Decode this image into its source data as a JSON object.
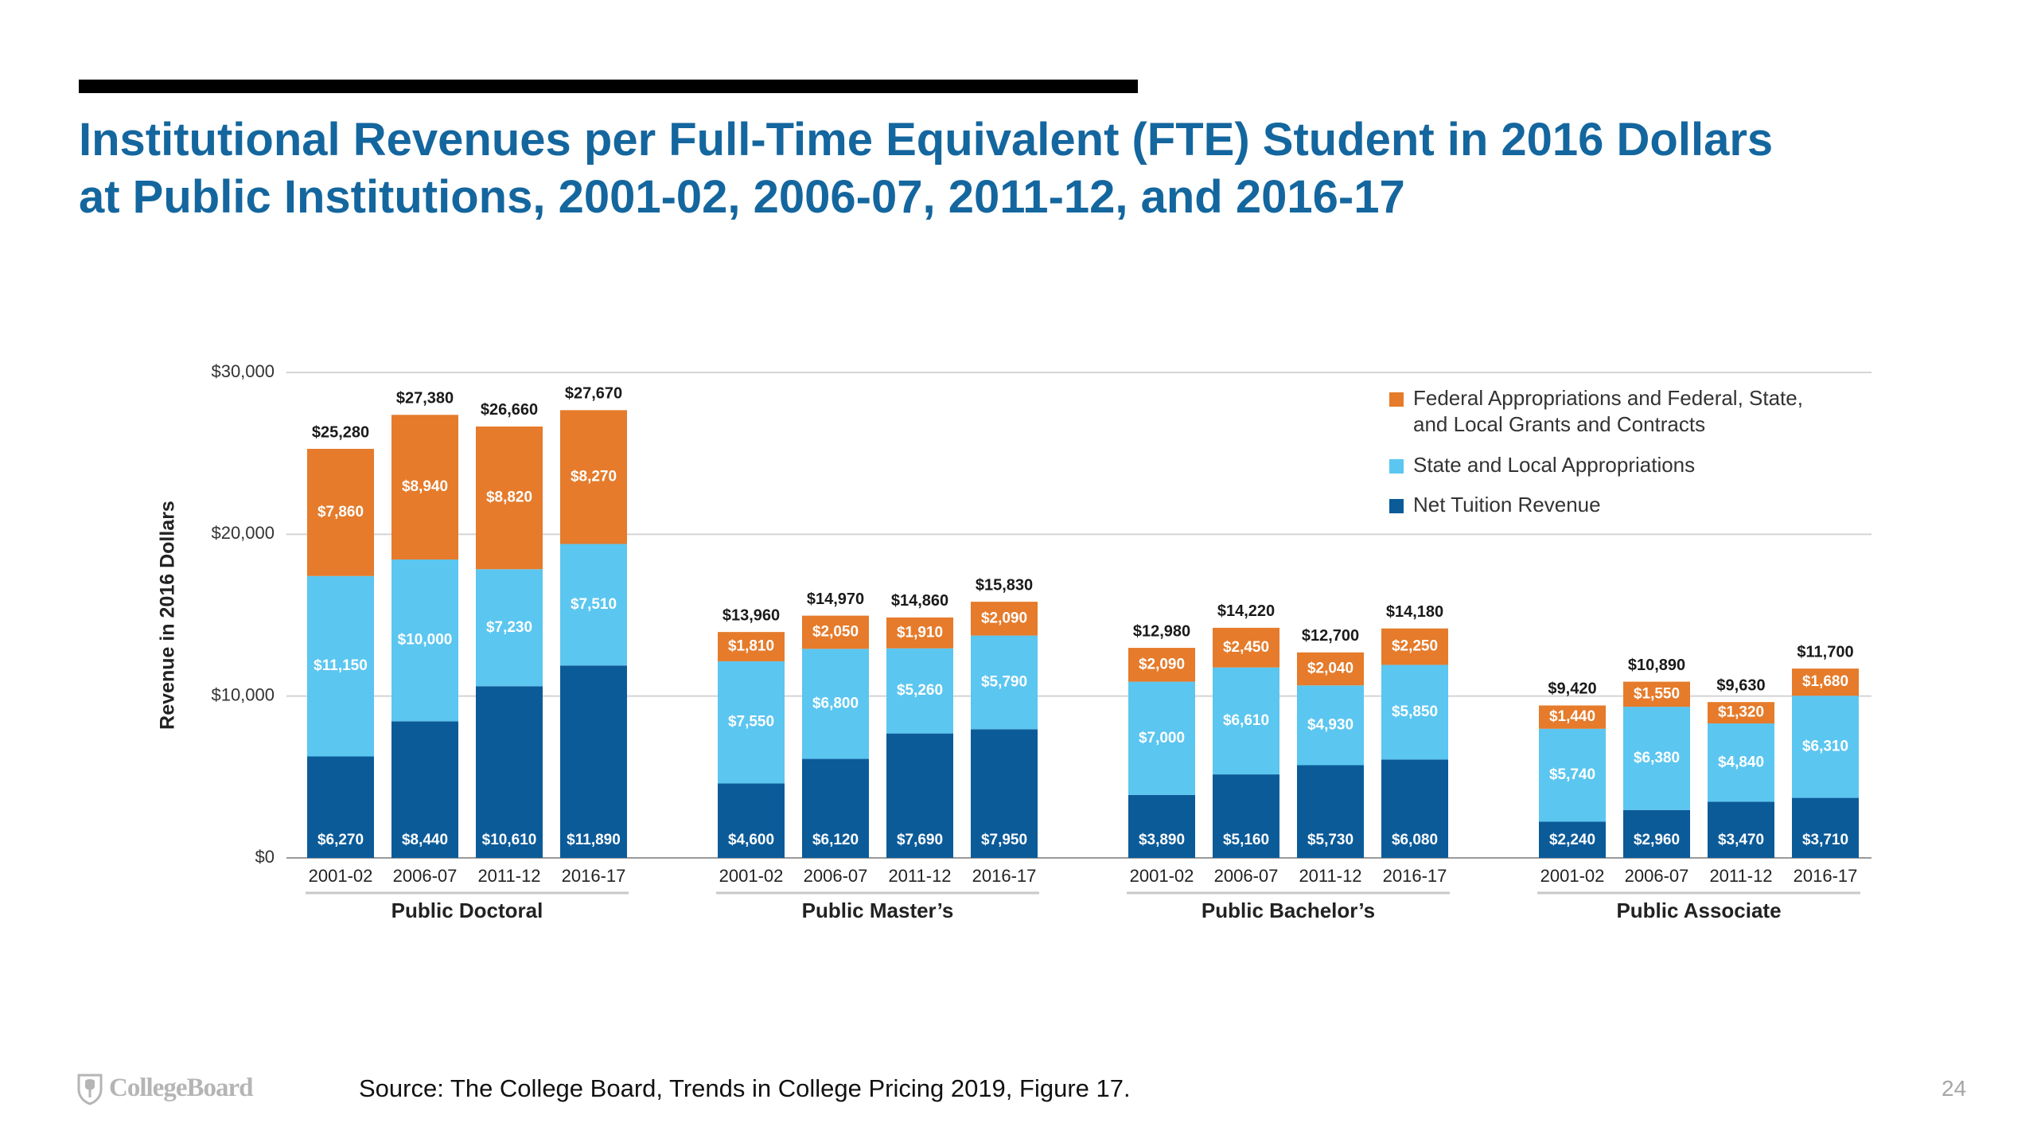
{
  "slide": {
    "title_line1": "Institutional Revenues per Full-Time Equivalent (FTE) Student in 2016 Dollars",
    "title_line2": "at Public Institutions, 2001-02, 2006-07, 2011-12, and 2016-17",
    "source": "Source: The College Board, Trends in College Pricing 2019, Figure 17.",
    "page_number": "24",
    "logo_text": "CollegeBoard",
    "logo_icon": "college-board-acorn-shield-icon",
    "title_color": "#14669e"
  },
  "chart_data": {
    "type": "bar",
    "stacked": true,
    "ylabel": "Revenue in 2016 Dollars",
    "ylim": [
      0,
      30000
    ],
    "yticks": [
      0,
      10000,
      20000,
      30000
    ],
    "ytick_labels": [
      "$0",
      "$10,000",
      "$20,000",
      "$30,000"
    ],
    "grid": true,
    "legend_position": "top-right",
    "series": [
      {
        "name": "Federal Appropriations and Federal, State, and Local Grants and Contracts",
        "legend_lines": [
          "Federal Appropriations and Federal, State,",
          "and Local Grants and Contracts"
        ],
        "color": "#e57b2b"
      },
      {
        "name": "State and Local Appropriations",
        "legend_lines": [
          "State and Local Appropriations"
        ],
        "color": "#5bc6f0"
      },
      {
        "name": "Net Tuition Revenue",
        "legend_lines": [
          "Net Tuition Revenue"
        ],
        "color": "#0b5b99"
      }
    ],
    "groups": [
      {
        "name": "Public Doctoral",
        "categories": [
          "2001-02",
          "2006-07",
          "2011-12",
          "2016-17"
        ],
        "net_tuition": [
          6270,
          8440,
          10610,
          11890
        ],
        "net_tuition_labels": [
          "$6,270",
          "$8,440",
          "$10,610",
          "$11,890"
        ],
        "state_local": [
          11150,
          10000,
          7230,
          7510
        ],
        "state_local_labels": [
          "$11,150",
          "$10,000",
          "$7,230",
          "$7,510"
        ],
        "federal": [
          7860,
          8940,
          8820,
          8270
        ],
        "federal_labels": [
          "$7,860",
          "$8,940",
          "$8,820",
          "$8,270"
        ],
        "totals": [
          25280,
          27380,
          26660,
          27670
        ],
        "total_labels": [
          "$25,280",
          "$27,380",
          "$26,660",
          "$27,670"
        ]
      },
      {
        "name": "Public Master’s",
        "categories": [
          "2001-02",
          "2006-07",
          "2011-12",
          "2016-17"
        ],
        "net_tuition": [
          4600,
          6120,
          7690,
          7950
        ],
        "net_tuition_labels": [
          "$4,600",
          "$6,120",
          "$7,690",
          "$7,950"
        ],
        "state_local": [
          7550,
          6800,
          5260,
          5790
        ],
        "state_local_labels": [
          "$7,550",
          "$6,800",
          "$5,260",
          "$5,790"
        ],
        "federal": [
          1810,
          2050,
          1910,
          2090
        ],
        "federal_labels": [
          "$1,810",
          "$2,050",
          "$1,910",
          "$2,090"
        ],
        "totals": [
          13960,
          14970,
          14860,
          15830
        ],
        "total_labels": [
          "$13,960",
          "$14,970",
          "$14,860",
          "$15,830"
        ]
      },
      {
        "name": "Public Bachelor’s",
        "categories": [
          "2001-02",
          "2006-07",
          "2011-12",
          "2016-17"
        ],
        "net_tuition": [
          3890,
          5160,
          5730,
          6080
        ],
        "net_tuition_labels": [
          "$3,890",
          "$5,160",
          "$5,730",
          "$6,080"
        ],
        "state_local": [
          7000,
          6610,
          4930,
          5850
        ],
        "state_local_labels": [
          "$7,000",
          "$6,610",
          "$4,930",
          "$5,850"
        ],
        "federal": [
          2090,
          2450,
          2040,
          2250
        ],
        "federal_labels": [
          "$2,090",
          "$2,450",
          "$2,040",
          "$2,250"
        ],
        "totals": [
          12980,
          14220,
          12700,
          14180
        ],
        "total_labels": [
          "$12,980",
          "$14,220",
          "$12,700",
          "$14,180"
        ]
      },
      {
        "name": "Public Associate",
        "categories": [
          "2001-02",
          "2006-07",
          "2011-12",
          "2016-17"
        ],
        "net_tuition": [
          2240,
          2960,
          3470,
          3710
        ],
        "net_tuition_labels": [
          "$2,240",
          "$2,960",
          "$3,470",
          "$3,710"
        ],
        "state_local": [
          5740,
          6380,
          4840,
          6310
        ],
        "state_local_labels": [
          "$5,740",
          "$6,380",
          "$4,840",
          "$6,310"
        ],
        "federal": [
          1440,
          1550,
          1320,
          1680
        ],
        "federal_labels": [
          "$1,440",
          "$1,550",
          "$1,320",
          "$1,680"
        ],
        "totals": [
          9420,
          10890,
          9630,
          11700
        ],
        "total_labels": [
          "$9,420",
          "$10,890",
          "$9,630",
          "$11,700"
        ]
      }
    ]
  }
}
